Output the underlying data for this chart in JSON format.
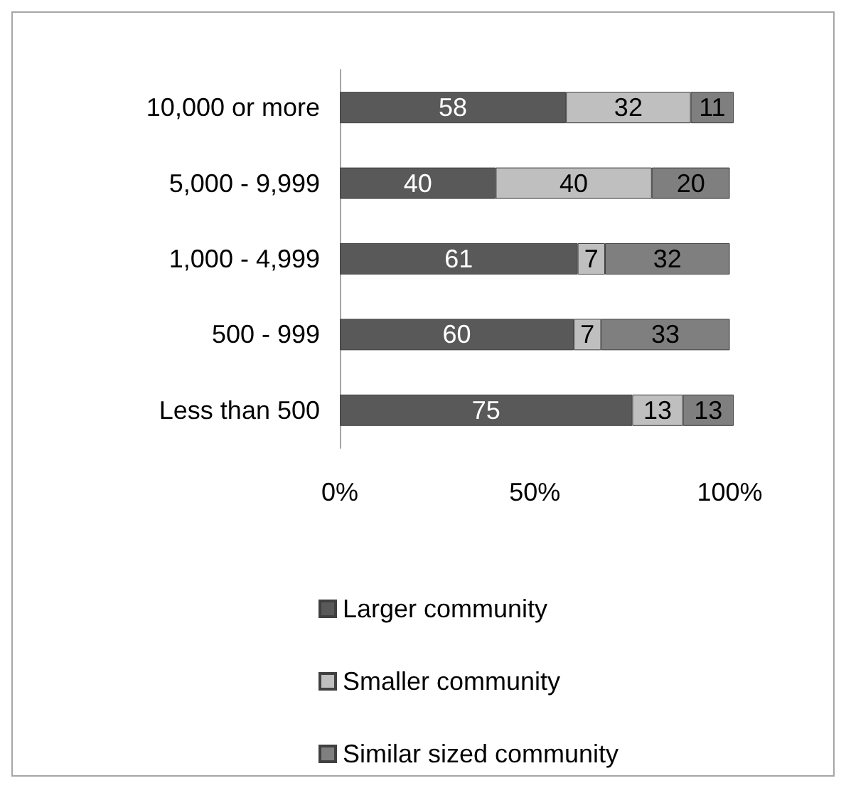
{
  "chart_data": {
    "type": "bar",
    "orientation": "horizontal",
    "stacked": true,
    "categories": [
      "10,000 or more",
      "5,000 - 9,999",
      "1,000 - 4,999",
      "500 - 999",
      "Less than 500"
    ],
    "series": [
      {
        "name": "Larger community",
        "color": "#595959",
        "values": [
          58,
          40,
          61,
          60,
          75
        ]
      },
      {
        "name": "Smaller community",
        "color": "#bfbfbf",
        "values": [
          32,
          40,
          7,
          7,
          13
        ]
      },
      {
        "name": "Similar sized community",
        "color": "#7f7f7f",
        "values": [
          11,
          20,
          32,
          33,
          13
        ]
      }
    ],
    "xlim": [
      0,
      101
    ],
    "xticks": [
      {
        "value": 0,
        "label": "0%"
      },
      {
        "value": 50,
        "label": "50%"
      },
      {
        "value": 100,
        "label": "100%"
      }
    ],
    "data_labels": true,
    "grid": false,
    "legend": "bottom"
  }
}
